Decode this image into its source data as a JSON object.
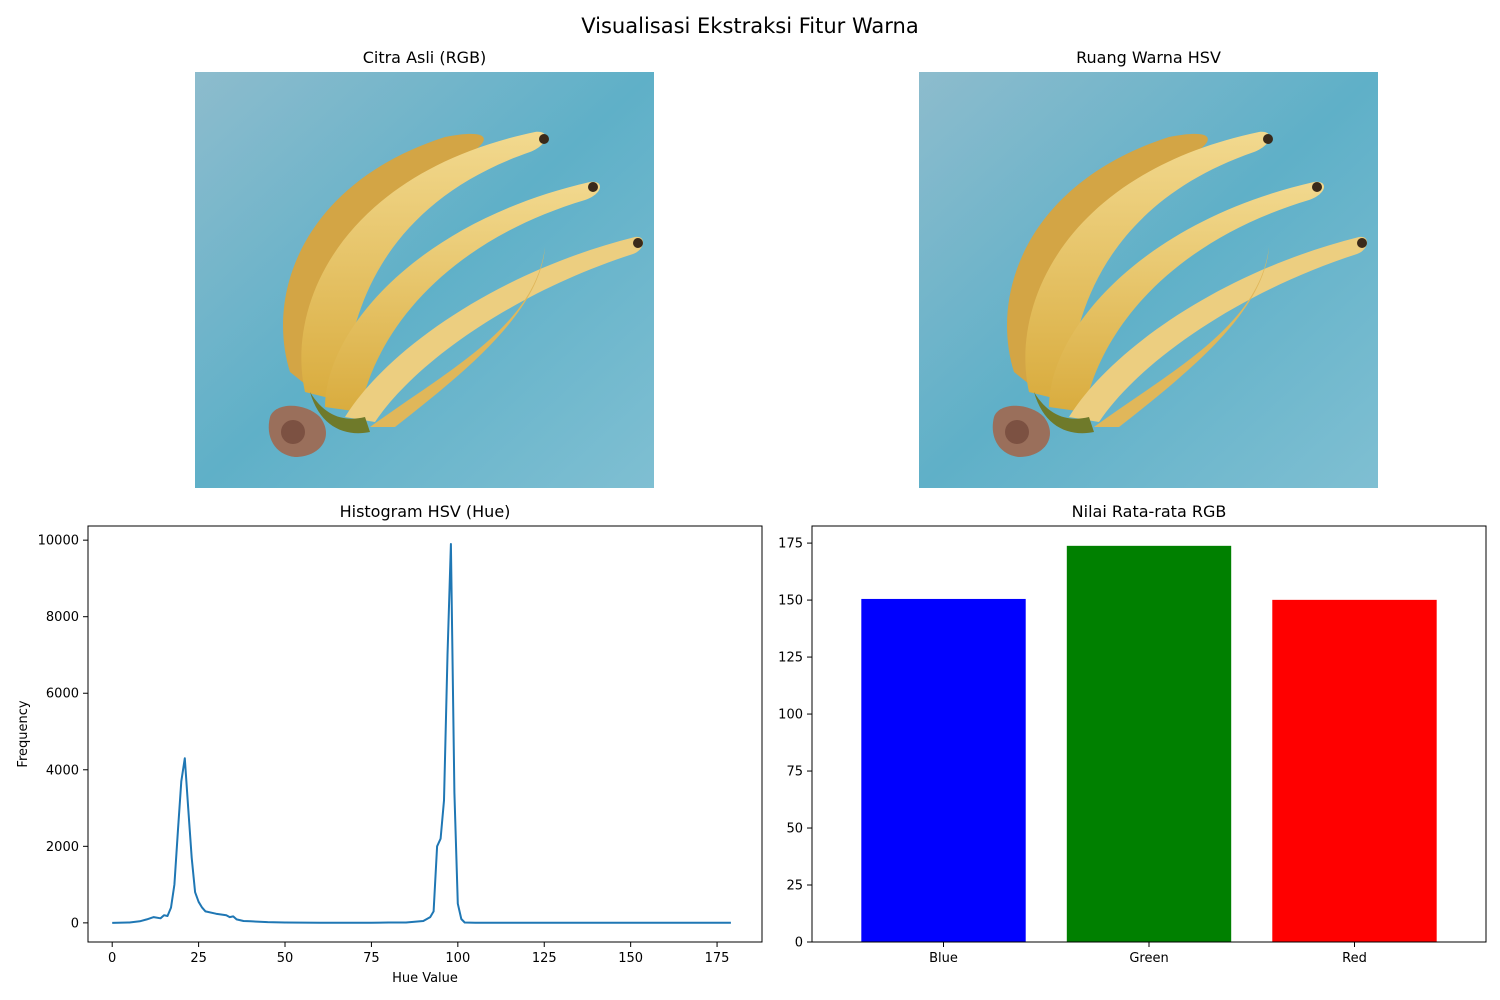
{
  "figure": {
    "title": "Visualisasi Ekstraksi Fitur Warna"
  },
  "panels": {
    "original": {
      "title": "Citra Asli (RGB)"
    },
    "hsv": {
      "title": "Ruang Warna HSV"
    }
  },
  "colors": {
    "line": "#1f77b4",
    "blue": "#0000ff",
    "green": "#008000",
    "red": "#ff0000",
    "photo_background": "#5fb0c8",
    "banana": "#e8c76a"
  },
  "chart_data": [
    {
      "type": "line",
      "title": "Histogram HSV (Hue)",
      "xlabel": "Hue Value",
      "ylabel": "Frequency",
      "xlim": [
        -7,
        188
      ],
      "ylim": [
        -500,
        10370
      ],
      "xticks": [
        0,
        25,
        50,
        75,
        100,
        125,
        150,
        175
      ],
      "yticks": [
        0,
        2000,
        4000,
        6000,
        8000,
        10000
      ],
      "grid": false,
      "x": [
        0,
        5,
        8,
        10,
        12,
        14,
        15,
        16,
        17,
        18,
        19,
        20,
        21,
        22,
        23,
        24,
        25,
        26,
        27,
        30,
        33,
        34,
        35,
        36,
        38,
        40,
        45,
        50,
        60,
        70,
        75,
        80,
        85,
        90,
        92,
        93,
        94,
        95,
        96,
        97,
        98,
        99,
        100,
        101,
        102,
        105,
        110,
        120,
        140,
        160,
        179
      ],
      "y": [
        0,
        10,
        40,
        90,
        150,
        120,
        200,
        180,
        400,
        1000,
        2400,
        3700,
        4300,
        3000,
        1700,
        800,
        550,
        400,
        300,
        240,
        200,
        150,
        170,
        90,
        50,
        40,
        20,
        10,
        5,
        5,
        5,
        10,
        10,
        50,
        150,
        300,
        2000,
        2200,
        3200,
        7000,
        9900,
        3400,
        500,
        100,
        10,
        5,
        5,
        5,
        5,
        5,
        5
      ]
    },
    {
      "type": "bar",
      "title": "Nilai Rata-rata RGB",
      "categories": [
        "Blue",
        "Green",
        "Red"
      ],
      "values": [
        150.5,
        173.8,
        150.1
      ],
      "bar_colors": [
        "#0000ff",
        "#008000",
        "#ff0000"
      ],
      "ylim": [
        0,
        182.5
      ],
      "yticks": [
        0,
        25,
        50,
        75,
        100,
        125,
        150,
        175
      ],
      "grid": false
    }
  ]
}
